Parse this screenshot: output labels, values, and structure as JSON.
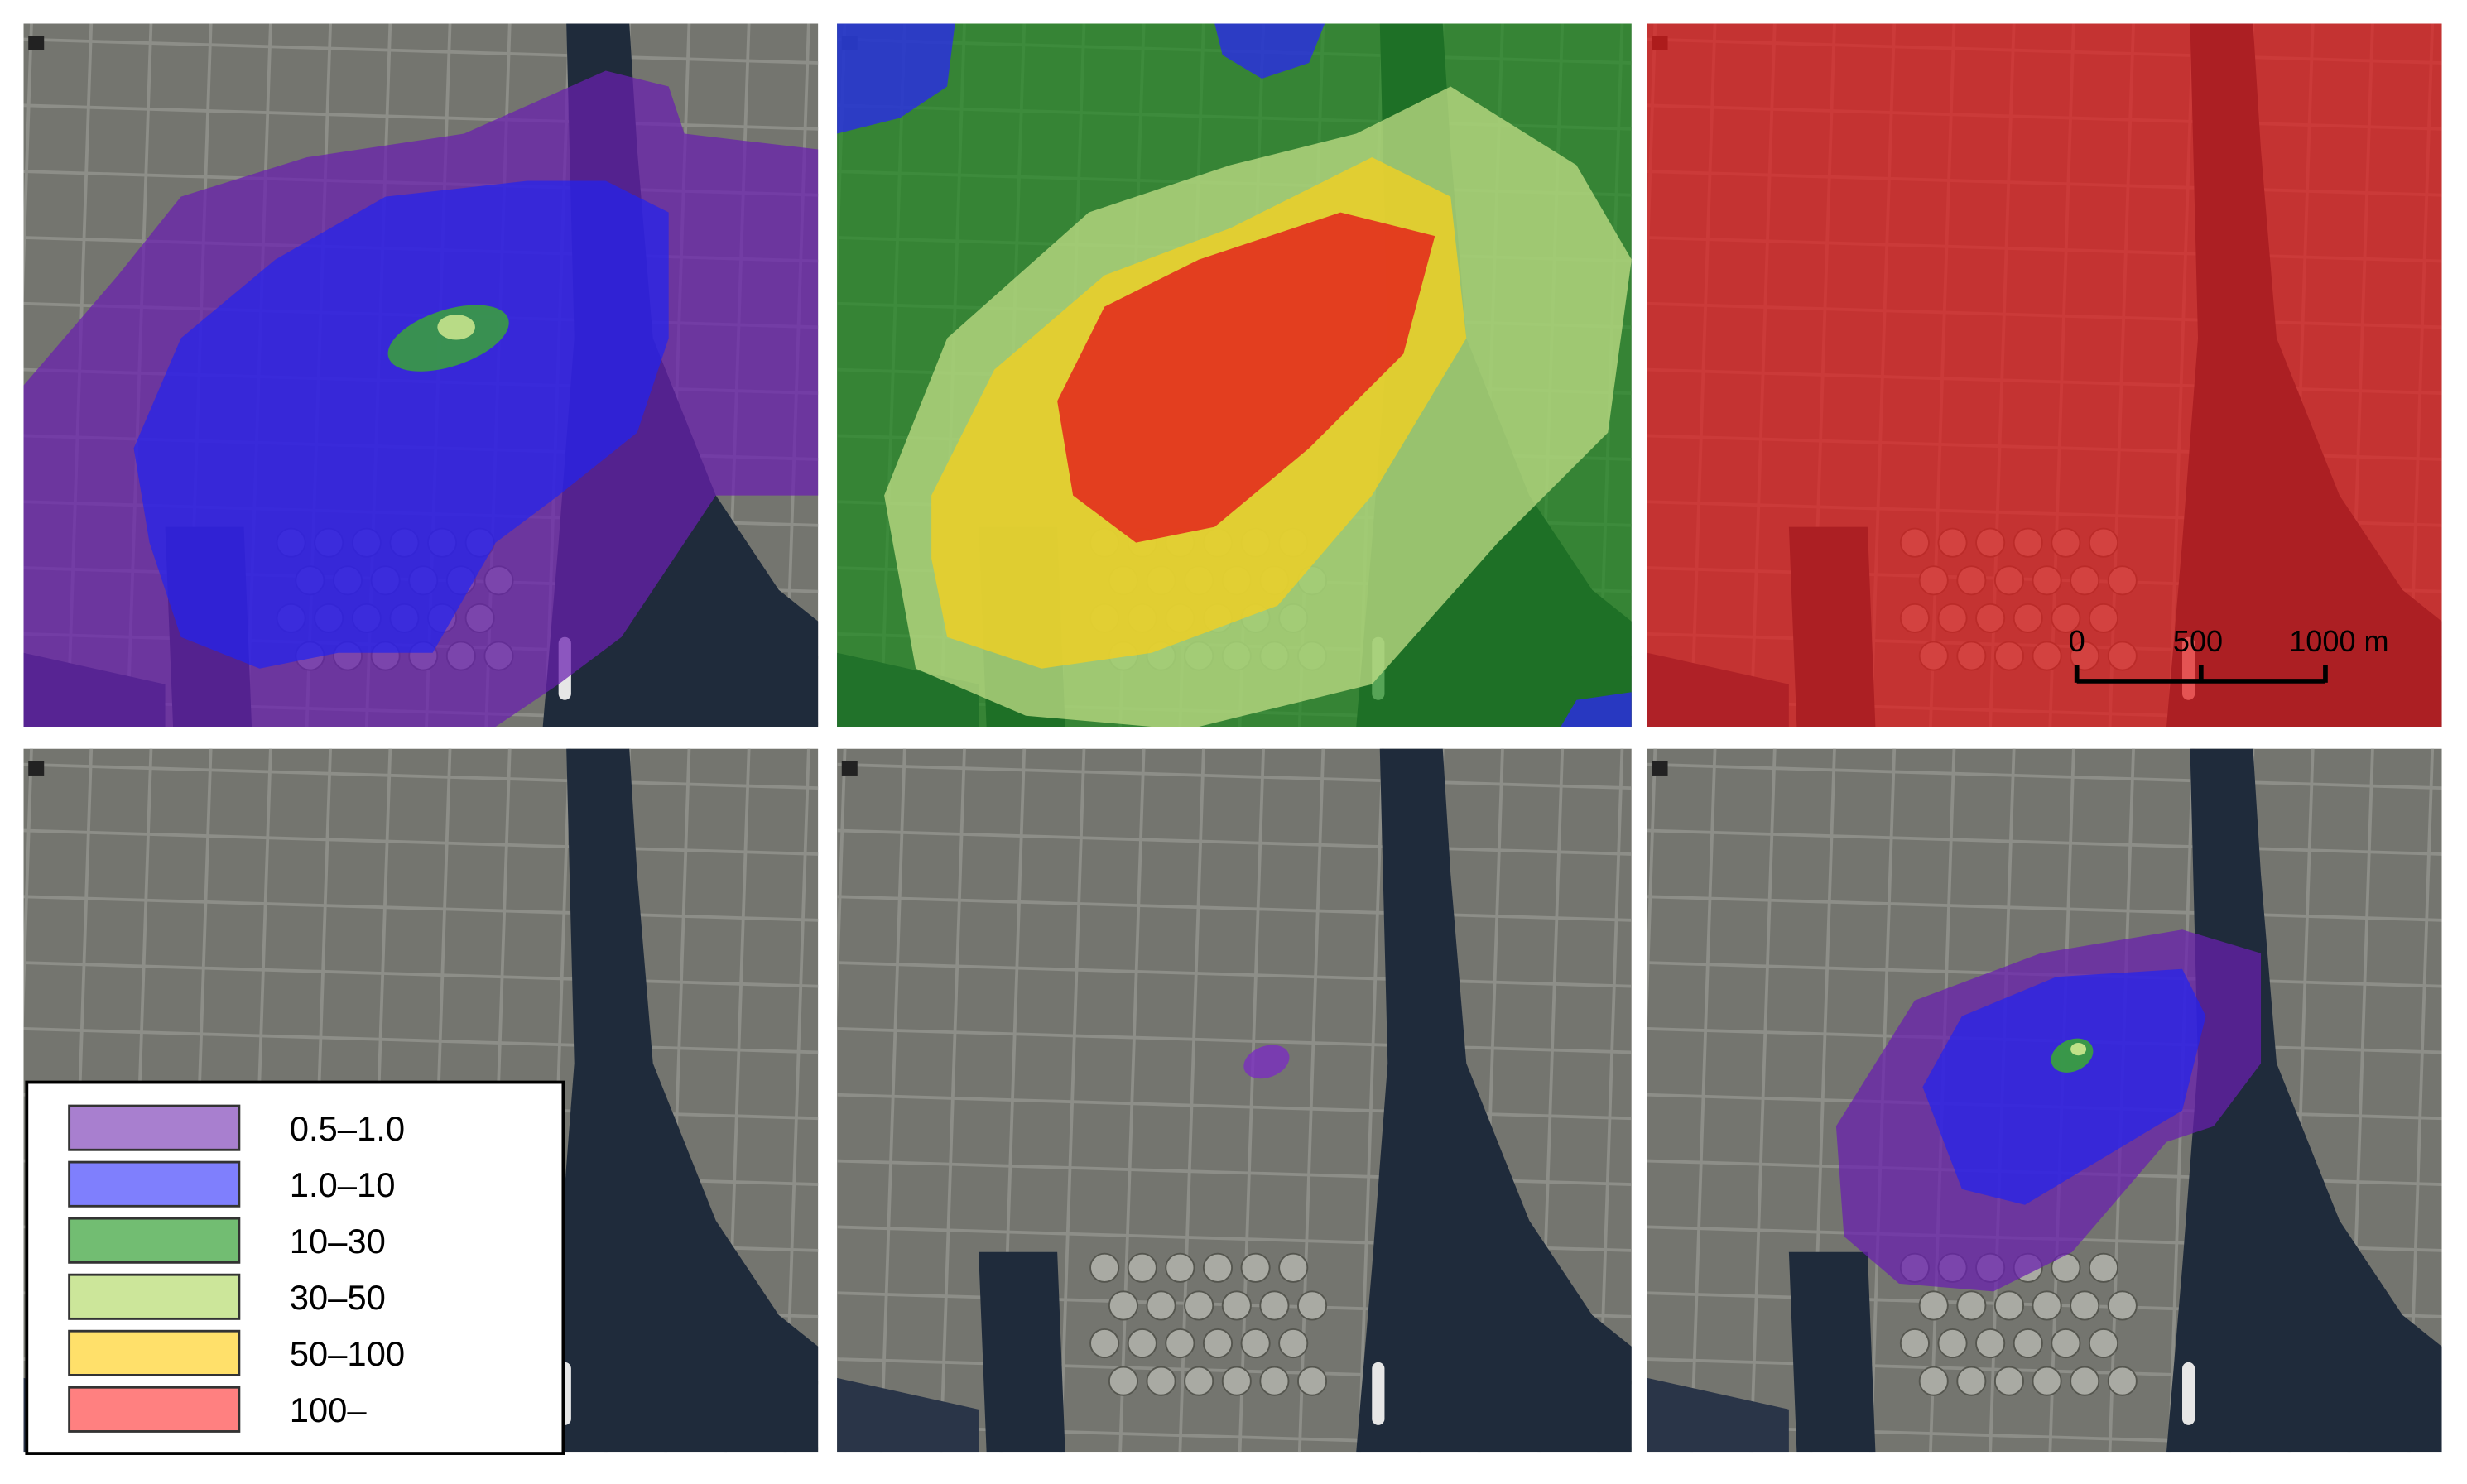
{
  "legend": {
    "items": [
      {
        "label": "0.5–1.0",
        "color": "#a87fcf"
      },
      {
        "label": "1.0–10",
        "color": "#7f7ffd"
      },
      {
        "label": "10–30",
        "color": "#72bd72"
      },
      {
        "label": "30–50",
        "color": "#cce69a"
      },
      {
        "label": "50–100",
        "color": "#ffe06a"
      },
      {
        "label": "100–",
        "color": "#ff8080"
      }
    ]
  },
  "scale_bar": {
    "labels": [
      "0",
      "500",
      "1000 m"
    ]
  }
}
